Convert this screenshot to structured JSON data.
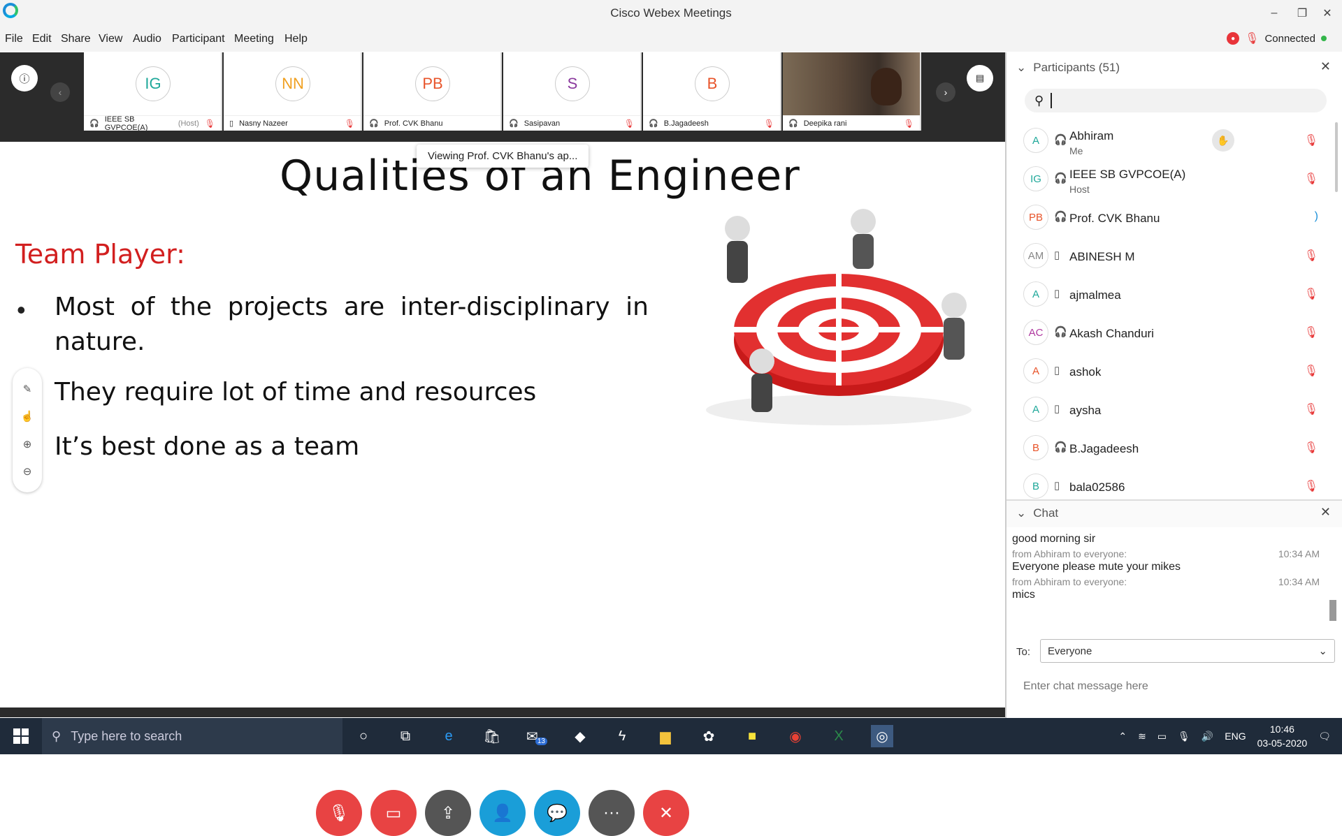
{
  "window": {
    "title": "Cisco Webex Meetings",
    "minimize": "–",
    "restore": "❐",
    "close": "✕"
  },
  "menu": [
    "File",
    "Edit",
    "Share",
    "View",
    "Audio",
    "Participant",
    "Meeting",
    "Help"
  ],
  "status": {
    "label": "Connected"
  },
  "strip": {
    "tiles": [
      {
        "initials": "IG",
        "name": "IEEE SB  GVPCOE(A)",
        "suffix": "(Host)",
        "color": "#1fa89a"
      },
      {
        "initials": "NN",
        "name": "Nasny Nazeer",
        "color": "#f0a020"
      },
      {
        "initials": "PB",
        "name": "Prof. CVK Bhanu",
        "color": "#e8542a"
      },
      {
        "initials": "S",
        "name": "Sasipavan",
        "color": "#8b3a9e"
      },
      {
        "initials": "B",
        "name": "B.Jagadeesh",
        "color": "#e8542a"
      },
      {
        "initials": "",
        "name": "Deepika rani",
        "color": ""
      }
    ]
  },
  "stage": {
    "viewing_tip": "Viewing Prof. CVK Bhanu's ap...",
    "slide_title": "Qualities of an Engineer",
    "slide_subtitle": "Team Player:",
    "bullets": [
      "Most of the projects are inter-disciplinary in nature.",
      "They require lot of time and resources",
      "It’s best done as a team"
    ]
  },
  "controls": [
    {
      "name": "mute-button",
      "icon": "🎙",
      "color": "#e84343"
    },
    {
      "name": "video-button",
      "icon": "▭",
      "color": "#e84343"
    },
    {
      "name": "share-button",
      "icon": "⇪",
      "color": "#555555"
    },
    {
      "name": "participants-button",
      "icon": "👤",
      "color": "#1a9ed8"
    },
    {
      "name": "chat-button",
      "icon": "💬",
      "color": "#1a9ed8"
    },
    {
      "name": "more-button",
      "icon": "···",
      "color": "#555555"
    },
    {
      "name": "leave-button",
      "icon": "✕",
      "color": "#e84343"
    }
  ],
  "participants": {
    "header": "Participants (51)",
    "list": [
      {
        "initials": "A",
        "name": "Abhiram",
        "sub": "Me",
        "device": "headset",
        "color": "#1fa89a"
      },
      {
        "initials": "IG",
        "name": "IEEE SB  GVPCOE(A)",
        "sub": "Host",
        "device": "headset",
        "color": "#1fa89a"
      },
      {
        "initials": "PB",
        "name": "Prof. CVK Bhanu",
        "sub": "",
        "device": "headset",
        "color": "#e8542a"
      },
      {
        "initials": "AM",
        "name": "ABINESH M",
        "sub": "",
        "device": "phone",
        "color": "#888888"
      },
      {
        "initials": "A",
        "name": "ajmalmea",
        "sub": "",
        "device": "phone",
        "color": "#1fa89a"
      },
      {
        "initials": "AC",
        "name": "Akash Chanduri",
        "sub": "",
        "device": "headset",
        "color": "#b03aa0"
      },
      {
        "initials": "A",
        "name": "ashok",
        "sub": "",
        "device": "phone",
        "color": "#e8542a"
      },
      {
        "initials": "A",
        "name": "aysha",
        "sub": "",
        "device": "phone",
        "color": "#1fa89a"
      },
      {
        "initials": "B",
        "name": "B.Jagadeesh",
        "sub": "",
        "device": "headset",
        "color": "#e8542a"
      },
      {
        "initials": "B",
        "name": "bala02586",
        "sub": "",
        "device": "phone",
        "color": "#1fa89a"
      }
    ]
  },
  "chat": {
    "header": "Chat",
    "messages": [
      {
        "text": "good morning sir"
      },
      {
        "meta": "from Abhiram to everyone:",
        "time": "10:34 AM",
        "text": "Everyone please mute your mikes"
      },
      {
        "meta": "from Abhiram to everyone:",
        "time": "10:34 AM",
        "text": "mics"
      }
    ],
    "to_label": "To:",
    "recipient": "Everyone",
    "input_placeholder": "Enter chat message here"
  },
  "taskbar": {
    "search_placeholder": "Type here to search",
    "mail_badge": "13",
    "language": "ENG",
    "time": "10:46",
    "date": "03-05-2020"
  }
}
